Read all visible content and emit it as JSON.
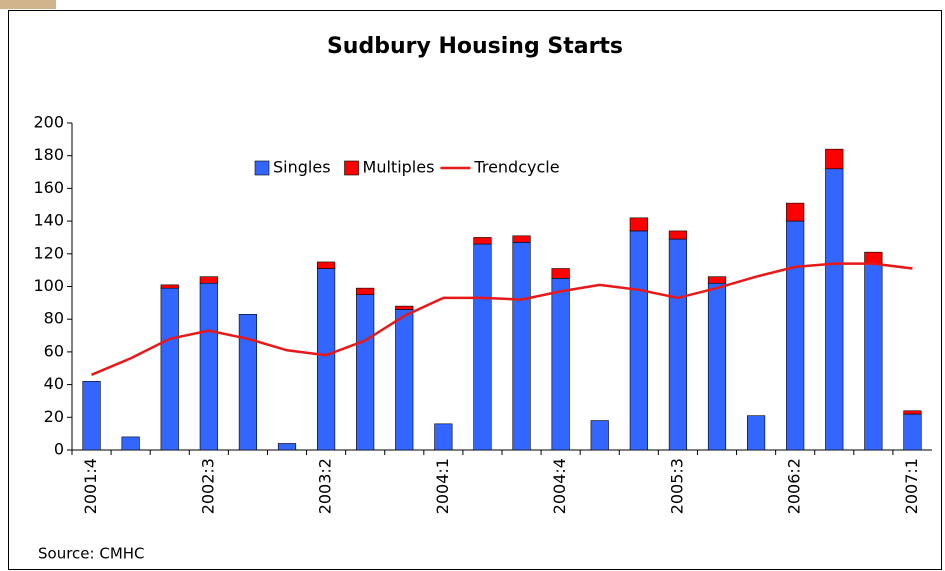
{
  "chart_data": {
    "type": "bar",
    "title": "Sudbury Housing Starts",
    "source": "Source: CMHC",
    "categories": [
      "2001:4",
      null,
      null,
      "2002:3",
      null,
      null,
      "2003:2",
      null,
      null,
      "2004:1",
      null,
      null,
      "2004:4",
      null,
      null,
      "2005:3",
      null,
      null,
      "2006:2",
      null,
      null,
      "2007:1"
    ],
    "series": [
      {
        "name": "Singles",
        "color": "#3366ff",
        "kind": "bar",
        "values": [
          42,
          8,
          99,
          102,
          83,
          4,
          111,
          95,
          86,
          16,
          126,
          127,
          105,
          18,
          134,
          129,
          102,
          21,
          140,
          172,
          114,
          22
        ]
      },
      {
        "name": "Multiples",
        "color": "#ff0000",
        "kind": "bar",
        "values": [
          0,
          0,
          2,
          4,
          0,
          0,
          4,
          4,
          2,
          0,
          4,
          4,
          6,
          0,
          8,
          5,
          4,
          0,
          11,
          12,
          7,
          2
        ]
      },
      {
        "name": "Trendcycle",
        "color": "#e81818",
        "kind": "line",
        "values": [
          46,
          56,
          68,
          73,
          68,
          61,
          58,
          67,
          82,
          93,
          93,
          92,
          97,
          101,
          98,
          93,
          99,
          106,
          112,
          114,
          114,
          111
        ]
      }
    ],
    "ylim": [
      0,
      200
    ],
    "yticks": [
      0,
      20,
      40,
      60,
      80,
      100,
      120,
      140,
      160,
      180,
      200
    ]
  }
}
